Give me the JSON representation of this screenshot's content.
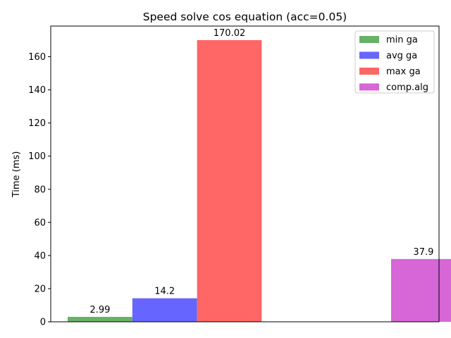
{
  "chart_data": {
    "type": "bar",
    "title": "Speed solve cos equation (acc=0.05)",
    "ylabel": "Time (ms)",
    "xlabel": "",
    "ylim": [
      0,
      178.5
    ],
    "yticks": [
      0,
      20,
      40,
      60,
      80,
      100,
      120,
      140,
      160
    ],
    "grid": false,
    "legend_position": "top-right",
    "series": [
      {
        "name": "min ga",
        "value": 2.99,
        "label": "2.99",
        "color": "#66b266",
        "slot": 0
      },
      {
        "name": "avg ga",
        "value": 14.2,
        "label": "14.2",
        "color": "#6666ff",
        "slot": 1
      },
      {
        "name": "max ga",
        "value": 170.02,
        "label": "170.02",
        "color": "#ff6666",
        "slot": 2
      },
      {
        "name": "comp.alg",
        "value": 37.9,
        "label": "37.9",
        "color": "#d766d7",
        "slot": 5
      }
    ]
  }
}
